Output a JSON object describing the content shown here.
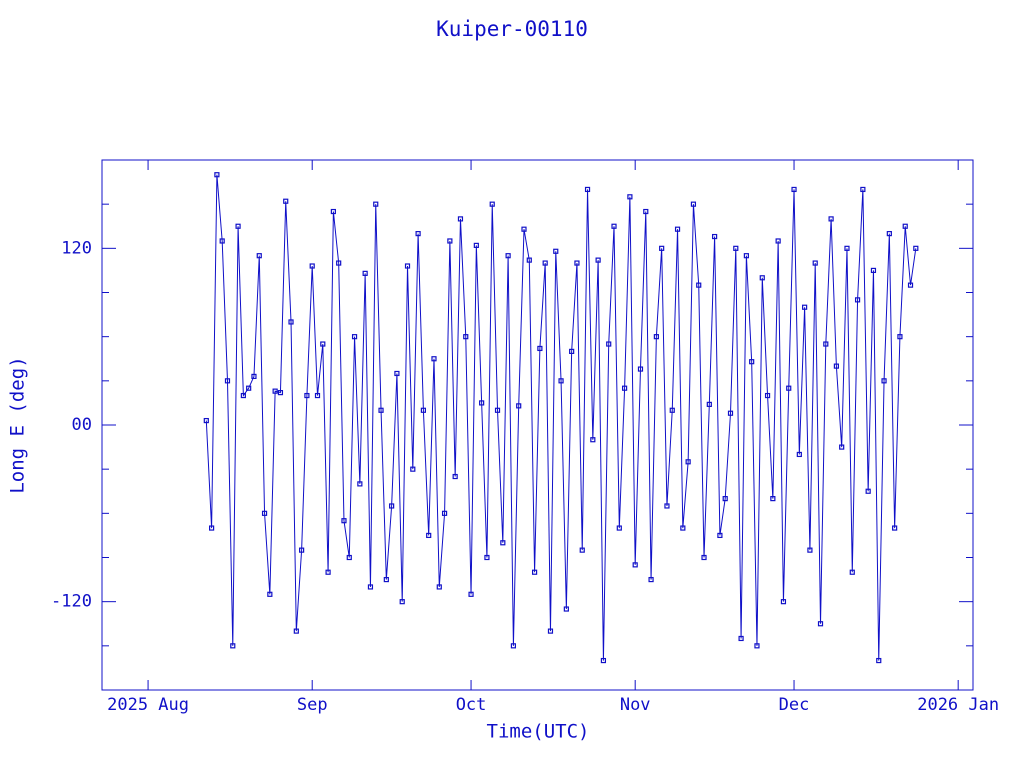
{
  "chart_data": {
    "type": "line",
    "title": "Kuiper-00110",
    "x_label": "Time(UTC)",
    "y_label": "Long E (deg)",
    "color": "#1010c8",
    "xlim": [
      204.3,
      368.8
    ],
    "xticks": [
      {
        "value": 213,
        "label": "2025 Aug"
      },
      {
        "value": 244,
        "label": "Sep"
      },
      {
        "value": 274,
        "label": "Oct"
      },
      {
        "value": 305,
        "label": "Nov"
      },
      {
        "value": 335,
        "label": "Dec"
      },
      {
        "value": 366,
        "label": "2026 Jan"
      }
    ],
    "ylim": [
      -180,
      180
    ],
    "yticks": [
      -120,
      {
        "value": 0,
        "label": "00"
      },
      120
    ],
    "yminor_ticks": [
      -150,
      -90,
      -60,
      -30,
      30,
      60,
      90,
      150
    ],
    "x": [
      224,
      225,
      226,
      227,
      228,
      229,
      230,
      231,
      232,
      233,
      234,
      235,
      236,
      237,
      238,
      239,
      240,
      241,
      242,
      243,
      244,
      245,
      246,
      247,
      248,
      249,
      250,
      251,
      252,
      253,
      254,
      255,
      256,
      257,
      258,
      259,
      260,
      261,
      262,
      263,
      264,
      265,
      266,
      267,
      268,
      269,
      270,
      271,
      272,
      273,
      274,
      275,
      276,
      277,
      278,
      279,
      280,
      281,
      282,
      283,
      284,
      285,
      286,
      287,
      288,
      289,
      290,
      291,
      292,
      293,
      294,
      295,
      296,
      297,
      298,
      299,
      300,
      301,
      302,
      303,
      304,
      305,
      306,
      307,
      308,
      309,
      310,
      311,
      312,
      313,
      314,
      315,
      316,
      317,
      318,
      319,
      320,
      321,
      322,
      323,
      324,
      325,
      326,
      327,
      328,
      329,
      330,
      331,
      332,
      333,
      334,
      335,
      336,
      337,
      338,
      339,
      340,
      341,
      342,
      343,
      344,
      345,
      346,
      347,
      348,
      349,
      350,
      351,
      352,
      353,
      354,
      355,
      356,
      357,
      358
    ],
    "values": [
      3,
      -70,
      170,
      125,
      30,
      -150,
      135,
      20,
      25,
      33,
      115,
      -60,
      -115,
      23,
      22,
      152,
      70,
      -140,
      -85,
      20,
      108,
      20,
      55,
      -100,
      145,
      110,
      -65,
      -90,
      60,
      -40,
      103,
      -110,
      150,
      10,
      -105,
      -55,
      35,
      -120,
      108,
      -30,
      130,
      10,
      -75,
      45,
      -110,
      -60,
      125,
      -35,
      140,
      60,
      -115,
      122,
      15,
      -90,
      150,
      10,
      -80,
      115,
      -150,
      13,
      133,
      112,
      -100,
      52,
      110,
      -140,
      118,
      30,
      -125,
      50,
      110,
      -85,
      160,
      -10,
      112,
      -160,
      55,
      135,
      -70,
      25,
      155,
      -95,
      38,
      145,
      -105,
      60,
      120,
      -55,
      10,
      133,
      -70,
      -25,
      150,
      95,
      -90,
      14,
      128,
      -75,
      -50,
      8,
      120,
      -145,
      115,
      43,
      -150,
      100,
      20,
      -50,
      125,
      -120,
      25,
      160,
      -20,
      80,
      -85,
      110,
      -135,
      55,
      140,
      40,
      -15,
      120,
      -100,
      85,
      160,
      -45,
      105,
      -160,
      30,
      130,
      -70,
      60,
      135,
      95,
      120
    ]
  }
}
